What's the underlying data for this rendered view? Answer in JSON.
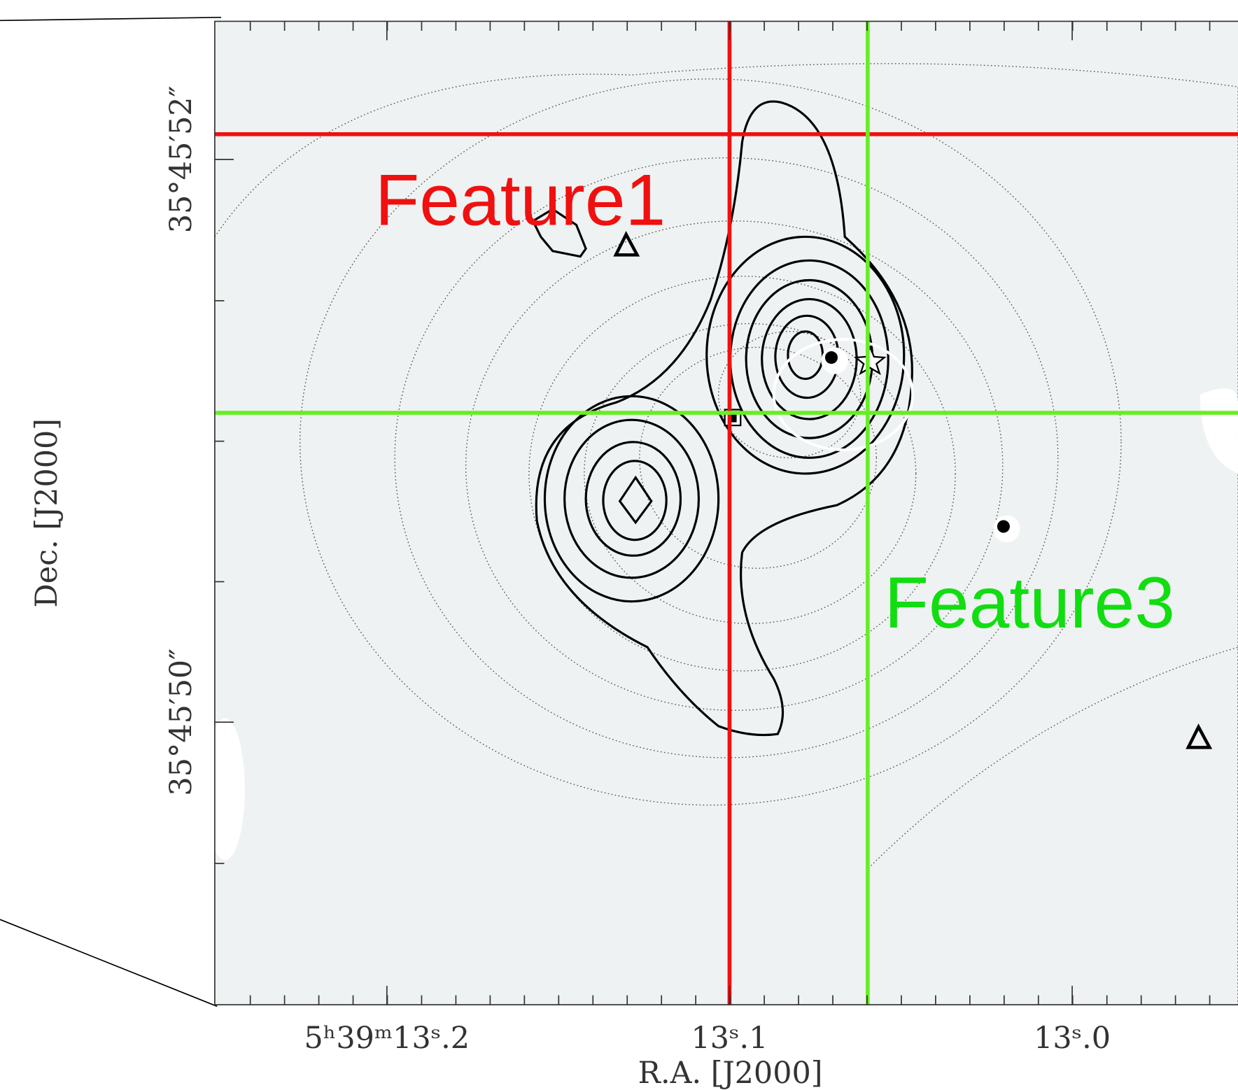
{
  "axes": {
    "x_label": "R.A. [J2000]",
    "y_label": "Dec. [J2000]",
    "x_tick_labels": [
      "5ʰ39ᵐ13ˢ.2",
      "13ˢ.1",
      "13ˢ.0"
    ],
    "y_tick_labels": [
      "35°45′52″",
      "35°45′50″"
    ]
  },
  "annotations": [
    "Feature1",
    "Feature3"
  ]
}
